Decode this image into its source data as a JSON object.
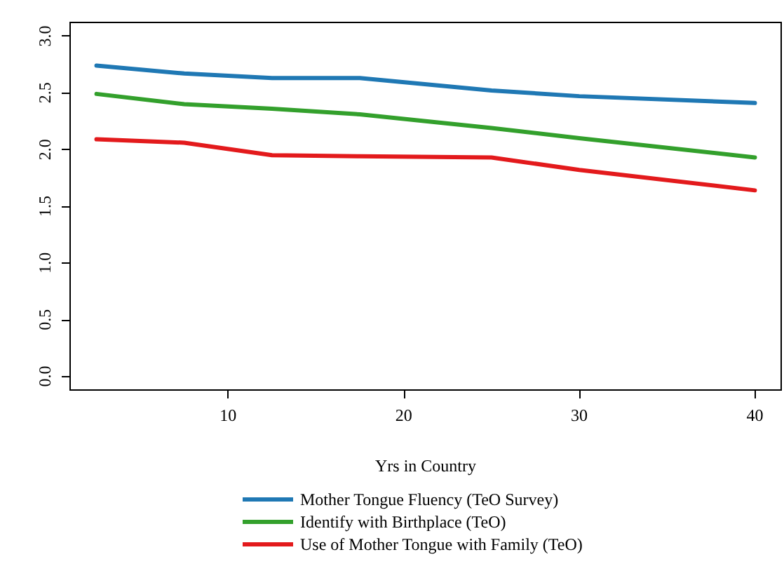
{
  "chart_data": {
    "type": "line",
    "xlabel": "Yrs in Country",
    "x": [
      2.5,
      7.5,
      12.5,
      17.5,
      25,
      30,
      40
    ],
    "xlim": [
      1,
      41.5
    ],
    "xticks": [
      10,
      20,
      30,
      40
    ],
    "ylim": [
      -0.12,
      3.12
    ],
    "yticks": [
      {
        "value": 0,
        "label": "0.0"
      },
      0.5,
      {
        "value": 1,
        "label": "1.0"
      },
      1.5,
      {
        "value": 2,
        "label": "2.0"
      },
      2.5,
      {
        "value": 3,
        "label": "3.0"
      }
    ],
    "legend": "bottom",
    "grid": false,
    "marker": "none",
    "line_style": "solid",
    "series": [
      {
        "name": "Mother Tongue Fluency (TeO Survey)",
        "color": "#1f78b4",
        "values": [
          2.74,
          2.67,
          2.63,
          2.63,
          2.52,
          2.47,
          2.41
        ]
      },
      {
        "name": "Identify with Birthplace (TeO)",
        "color": "#33a02c",
        "values": [
          2.49,
          2.4,
          2.36,
          2.31,
          2.19,
          2.1,
          1.93
        ]
      },
      {
        "name": "Use of Mother Tongue with Family (TeO)",
        "color": "#e31a1c",
        "values": [
          2.09,
          2.06,
          1.95,
          1.94,
          1.93,
          1.82,
          1.64
        ]
      }
    ]
  }
}
